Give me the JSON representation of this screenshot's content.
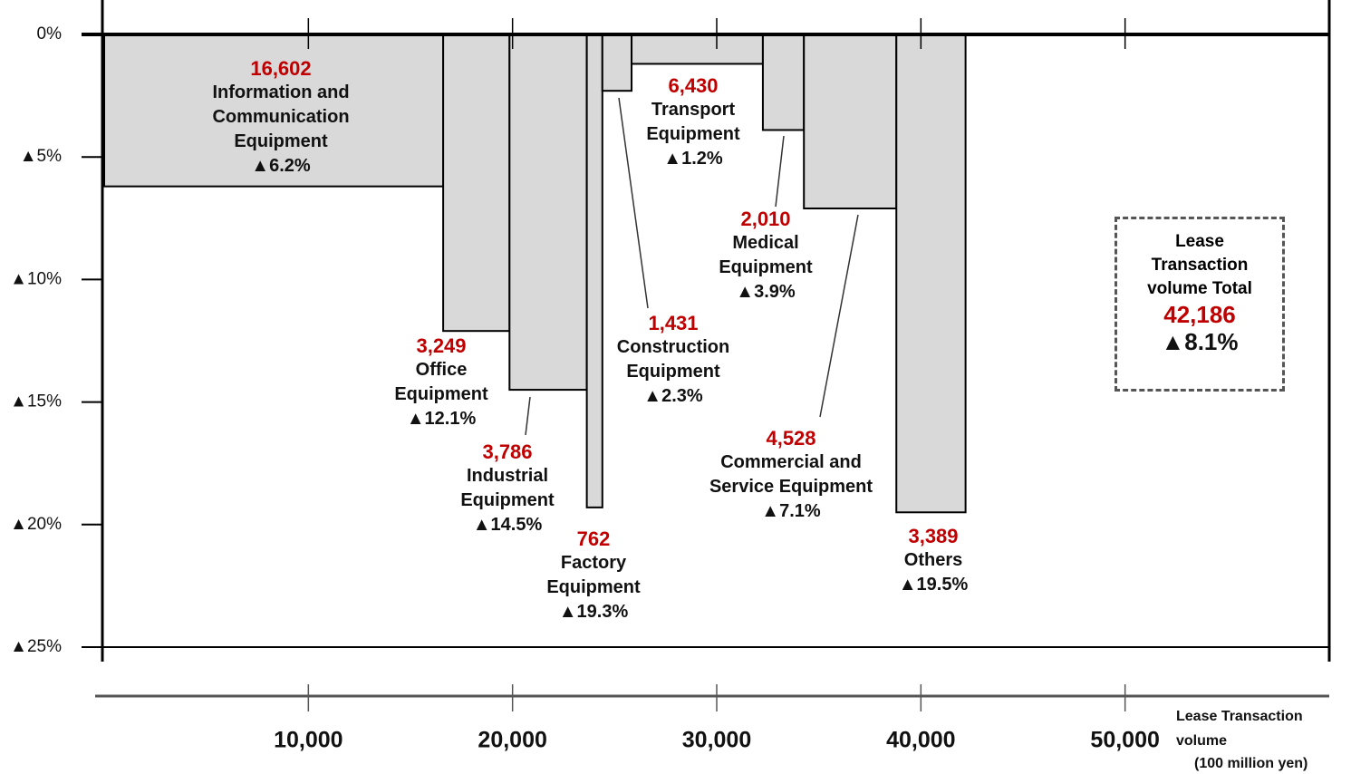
{
  "chart_data": {
    "type": "mekko",
    "categories": [
      "Information and Communication Equipment",
      "Office Equipment",
      "Industrial Equipment",
      "Factory Equipment",
      "Construction Equipment",
      "Transport Equipment",
      "Medical Equipment",
      "Commercial and Service Equipment",
      "Others"
    ],
    "widths": [
      16602,
      3249,
      3786,
      762,
      1431,
      6430,
      2010,
      4528,
      3389
    ],
    "width_labels": [
      "16,602",
      "3,249",
      "3,786",
      "762",
      "1,431",
      "6,430",
      "2,010",
      "4,528",
      "3,389"
    ],
    "values": [
      -6.2,
      -12.1,
      -14.5,
      -19.3,
      -2.3,
      -1.2,
      -3.9,
      -7.1,
      -19.5
    ],
    "value_labels": [
      "▲6.2%",
      "▲12.1%",
      "▲14.5%",
      "▲19.3%",
      "▲2.3%",
      "▲1.2%",
      "▲3.9%",
      "▲7.1%",
      "▲19.5%"
    ],
    "color": "#d9d9d9",
    "ylim": [
      -25,
      0
    ],
    "yticks": [
      {
        "value": 0,
        "label": "0%"
      },
      {
        "value": -5,
        "label": "▲5%"
      },
      {
        "value": -10,
        "label": "▲10%"
      },
      {
        "value": -15,
        "label": "▲15%"
      },
      {
        "value": -20,
        "label": "▲20%"
      },
      {
        "value": -25,
        "label": "▲25%"
      }
    ],
    "xlim": [
      0,
      60000
    ],
    "xticks": [
      {
        "value": 10000,
        "label": "10,000"
      },
      {
        "value": 20000,
        "label": "20,000"
      },
      {
        "value": 30000,
        "label": "30,000"
      },
      {
        "value": 40000,
        "label": "40,000"
      },
      {
        "value": 50000,
        "label": "50,000"
      }
    ],
    "x_label": [
      "Lease Transaction",
      "volume",
      "(100 million yen)"
    ],
    "total": {
      "label": "Lease Transaction volume Total",
      "value": 42186,
      "value_label": "42,186",
      "change": -8.1,
      "change_label": "▲8.1%"
    }
  }
}
